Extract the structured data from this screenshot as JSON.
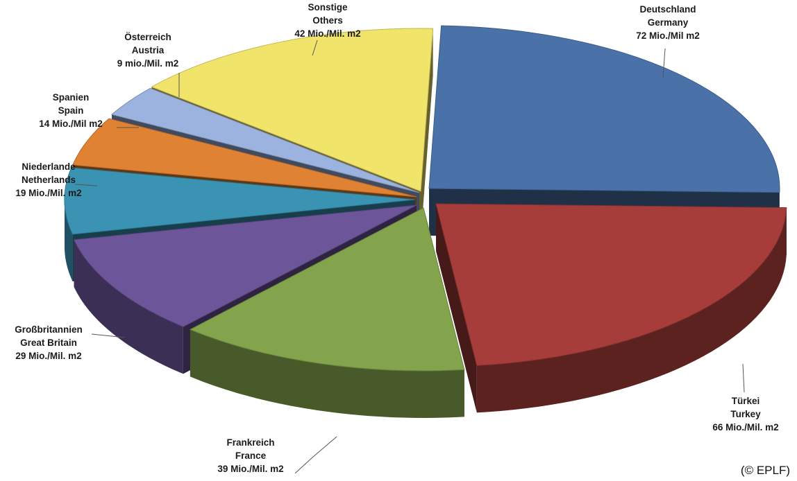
{
  "chart_data": {
    "type": "pie",
    "style": "3d-exploded",
    "slices": [
      {
        "key": "de",
        "label_de": "Deutschland",
        "label_en": "Germany",
        "value": 72,
        "unit_label": "72 Mio./Mil m2",
        "color": "#4a72a8"
      },
      {
        "key": "tr",
        "label_de": "Türkei",
        "label_en": "Turkey",
        "value": 66,
        "unit_label": "66 Mio./Mil. m2",
        "color": "#a63d3b"
      },
      {
        "key": "fr",
        "label_de": "Frankreich",
        "label_en": "France",
        "value": 39,
        "unit_label": "39 Mio./Mil. m2",
        "color": "#83a44c"
      },
      {
        "key": "gb",
        "label_de": "Großbritannien",
        "label_en": "Great Britain",
        "value": 29,
        "unit_label": "29 Mio./Mil. m2",
        "color": "#6d559a"
      },
      {
        "key": "nl",
        "label_de": "Niederlande",
        "label_en": "Netherlands",
        "value": 19,
        "unit_label": "19 Mio./Mil. m2",
        "color": "#3a93b2"
      },
      {
        "key": "es",
        "label_de": "Spanien",
        "label_en": "Spain",
        "value": 14,
        "unit_label": "14 Mio./Mil m2",
        "color": "#e08233"
      },
      {
        "key": "at",
        "label_de": "Österreich",
        "label_en": "Austria",
        "value": 9,
        "unit_label": "9 mio./Mil. m2",
        "color": "#9bb3de"
      },
      {
        "key": "ot",
        "label_de": "Sonstige",
        "label_en": "Others",
        "value": 42,
        "unit_label": "42 Mio./Mil. m2",
        "color": "#f1e46a"
      }
    ]
  },
  "copyright": "(© EPLF)"
}
